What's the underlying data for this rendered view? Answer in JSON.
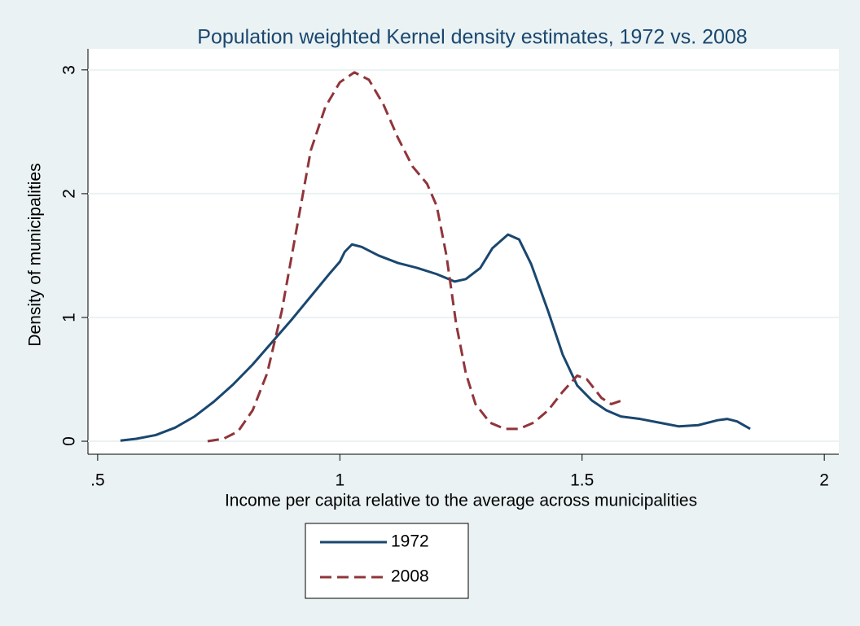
{
  "chart_data": {
    "type": "line",
    "title": "Population weighted Kernel density estimates, 1972 vs. 2008",
    "x_label": "Income per capita relative to the average across municipalities",
    "y_label": "Density of municipalities",
    "xlim": [
      0.48,
      2.03
    ],
    "ylim": [
      -0.105,
      3.17
    ],
    "xticks": [
      {
        "value": 0.5,
        "label": ".5"
      },
      1,
      1.5,
      2
    ],
    "yticks": [
      0,
      1,
      2,
      3
    ],
    "grid": true,
    "legend": "bottom",
    "series": [
      {
        "name": "1972",
        "color": "#1a476f",
        "dash": false,
        "x": [
          0.547,
          0.58,
          0.62,
          0.66,
          0.7,
          0.74,
          0.78,
          0.82,
          0.86,
          0.9,
          0.94,
          0.98,
          1.0,
          1.01,
          1.025,
          1.045,
          1.08,
          1.12,
          1.16,
          1.2,
          1.237,
          1.26,
          1.29,
          1.315,
          1.347,
          1.37,
          1.395,
          1.43,
          1.46,
          1.49,
          1.52,
          1.55,
          1.58,
          1.62,
          1.66,
          1.7,
          1.74,
          1.78,
          1.8,
          1.82,
          1.847
        ],
        "values": [
          0.005,
          0.02,
          0.05,
          0.11,
          0.2,
          0.32,
          0.46,
          0.62,
          0.8,
          0.98,
          1.17,
          1.36,
          1.45,
          1.53,
          1.59,
          1.57,
          1.5,
          1.44,
          1.4,
          1.35,
          1.29,
          1.31,
          1.4,
          1.56,
          1.67,
          1.63,
          1.43,
          1.05,
          0.7,
          0.45,
          0.33,
          0.25,
          0.2,
          0.18,
          0.15,
          0.12,
          0.13,
          0.17,
          0.18,
          0.16,
          0.1
        ]
      },
      {
        "name": "2008",
        "color": "#90353b",
        "dash": true,
        "x": [
          0.727,
          0.76,
          0.79,
          0.82,
          0.85,
          0.88,
          0.91,
          0.94,
          0.97,
          1.0,
          1.03,
          1.06,
          1.09,
          1.12,
          1.15,
          1.18,
          1.2,
          1.22,
          1.24,
          1.26,
          1.28,
          1.31,
          1.34,
          1.37,
          1.4,
          1.43,
          1.46,
          1.49,
          1.51,
          1.54,
          1.56,
          1.59
        ],
        "values": [
          0,
          0.02,
          0.08,
          0.25,
          0.55,
          1.05,
          1.7,
          2.35,
          2.7,
          2.9,
          2.98,
          2.92,
          2.72,
          2.45,
          2.22,
          2.08,
          1.9,
          1.5,
          0.95,
          0.55,
          0.3,
          0.15,
          0.1,
          0.1,
          0.15,
          0.25,
          0.4,
          0.53,
          0.5,
          0.35,
          0.3,
          0.34
        ]
      }
    ]
  }
}
